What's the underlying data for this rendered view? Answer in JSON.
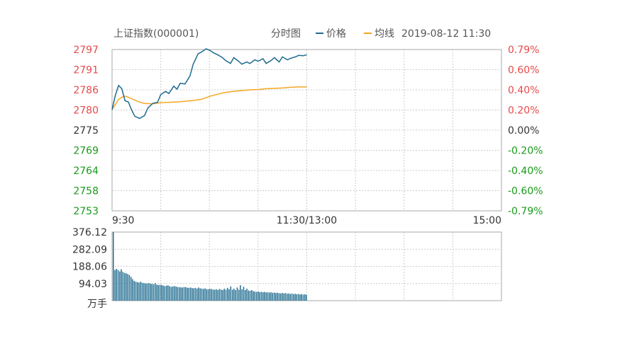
{
  "header": {
    "index_name": "上证指数(000001)",
    "view_label": "分时图",
    "price_legend": "价格",
    "avg_legend": "均线",
    "datetime": "2019-08-12 11:30"
  },
  "colors": {
    "price_line": "#1f6b8f",
    "avg_line": "#f5a623",
    "up": "#e84a4a",
    "down": "#1a9a1a",
    "neutral": "#333333",
    "volume_bar": "#1f6b8f",
    "grid": "#cccccc"
  },
  "chart_data": [
    {
      "type": "line",
      "title": "上证指数(000001)",
      "ylim": [
        2753,
        2797
      ],
      "y_ticks_left": [
        "2797",
        "2791",
        "2786",
        "2780",
        "2775",
        "2769",
        "2764",
        "2758",
        "2753"
      ],
      "y_ticks_right": [
        "0.79%",
        "0.60%",
        "0.40%",
        "0.20%",
        "0.00%",
        "-0.20%",
        "-0.40%",
        "-0.60%",
        "-0.79%"
      ],
      "x_ticks": [
        "9:30",
        "11:30/13:00",
        "15:00"
      ],
      "series": [
        {
          "name": "价格",
          "x_minutes": [
            0,
            2,
            4,
            6,
            8,
            10,
            12,
            14,
            17,
            20,
            22,
            25,
            28,
            30,
            33,
            35,
            38,
            40,
            42,
            45,
            48,
            50,
            53,
            55,
            58,
            60,
            63,
            65,
            68,
            70,
            73,
            75,
            78,
            80,
            83,
            85,
            88,
            90,
            93,
            95,
            98,
            100,
            103,
            105,
            108,
            110,
            113,
            115,
            118,
            120
          ],
          "values": [
            2780.6,
            2784.5,
            2787.2,
            2786.3,
            2783.0,
            2782.7,
            2780.6,
            2778.8,
            2778.2,
            2779.0,
            2781.0,
            2782.3,
            2782.6,
            2784.7,
            2785.6,
            2785.0,
            2787.0,
            2786.2,
            2787.8,
            2787.6,
            2789.8,
            2793.0,
            2795.8,
            2796.3,
            2797.2,
            2796.8,
            2796.0,
            2795.6,
            2794.8,
            2794.0,
            2793.2,
            2794.8,
            2793.8,
            2793.0,
            2793.6,
            2793.2,
            2794.2,
            2793.8,
            2794.5,
            2793.2,
            2794.0,
            2794.8,
            2793.6,
            2795.0,
            2794.2,
            2794.6,
            2795.0,
            2795.4,
            2795.3,
            2795.6
          ]
        },
        {
          "name": "均线",
          "x_minutes": [
            0,
            2,
            4,
            6,
            8,
            10,
            13,
            16,
            20,
            25,
            30,
            35,
            40,
            45,
            50,
            55,
            60,
            65,
            70,
            75,
            80,
            85,
            90,
            95,
            100,
            105,
            110,
            115,
            120
          ],
          "values": [
            2780.6,
            2782.0,
            2783.4,
            2784.0,
            2784.3,
            2784.0,
            2783.4,
            2782.8,
            2782.3,
            2782.2,
            2782.5,
            2782.6,
            2782.7,
            2782.9,
            2783.1,
            2783.4,
            2784.2,
            2784.8,
            2785.3,
            2785.6,
            2785.8,
            2786.0,
            2786.1,
            2786.3,
            2786.4,
            2786.5,
            2786.7,
            2786.8,
            2786.8
          ]
        }
      ]
    },
    {
      "type": "bar",
      "ylim": [
        0,
        376.12
      ],
      "y_ticks": [
        "376.12",
        "282.09",
        "188.06",
        "94.03",
        "万手"
      ],
      "values": [
        376,
        168,
        175,
        168,
        160,
        172,
        158,
        152,
        150,
        146,
        140,
        130,
        118,
        108,
        104,
        101,
        99,
        104,
        98,
        96,
        95,
        94,
        97,
        93,
        92,
        90,
        96,
        88,
        85,
        87,
        86,
        83,
        80,
        82,
        84,
        79,
        76,
        78,
        80,
        77,
        75,
        74,
        73,
        72,
        75,
        74,
        71,
        70,
        72,
        69,
        68,
        70,
        66,
        72,
        68,
        66,
        64,
        68,
        63,
        62,
        65,
        64,
        61,
        60,
        63,
        59,
        64,
        61,
        58,
        66,
        60,
        70,
        62,
        78,
        60,
        66,
        58,
        72,
        60,
        85,
        62,
        76,
        58,
        66,
        56,
        54,
        58,
        52,
        50,
        48,
        51,
        47,
        49,
        46,
        48,
        45,
        47,
        44,
        46,
        43,
        45,
        42,
        44,
        41,
        40,
        43,
        39,
        42,
        38,
        40,
        37,
        39,
        36,
        38,
        35,
        37,
        34,
        36,
        33,
        35,
        32
      ]
    }
  ]
}
